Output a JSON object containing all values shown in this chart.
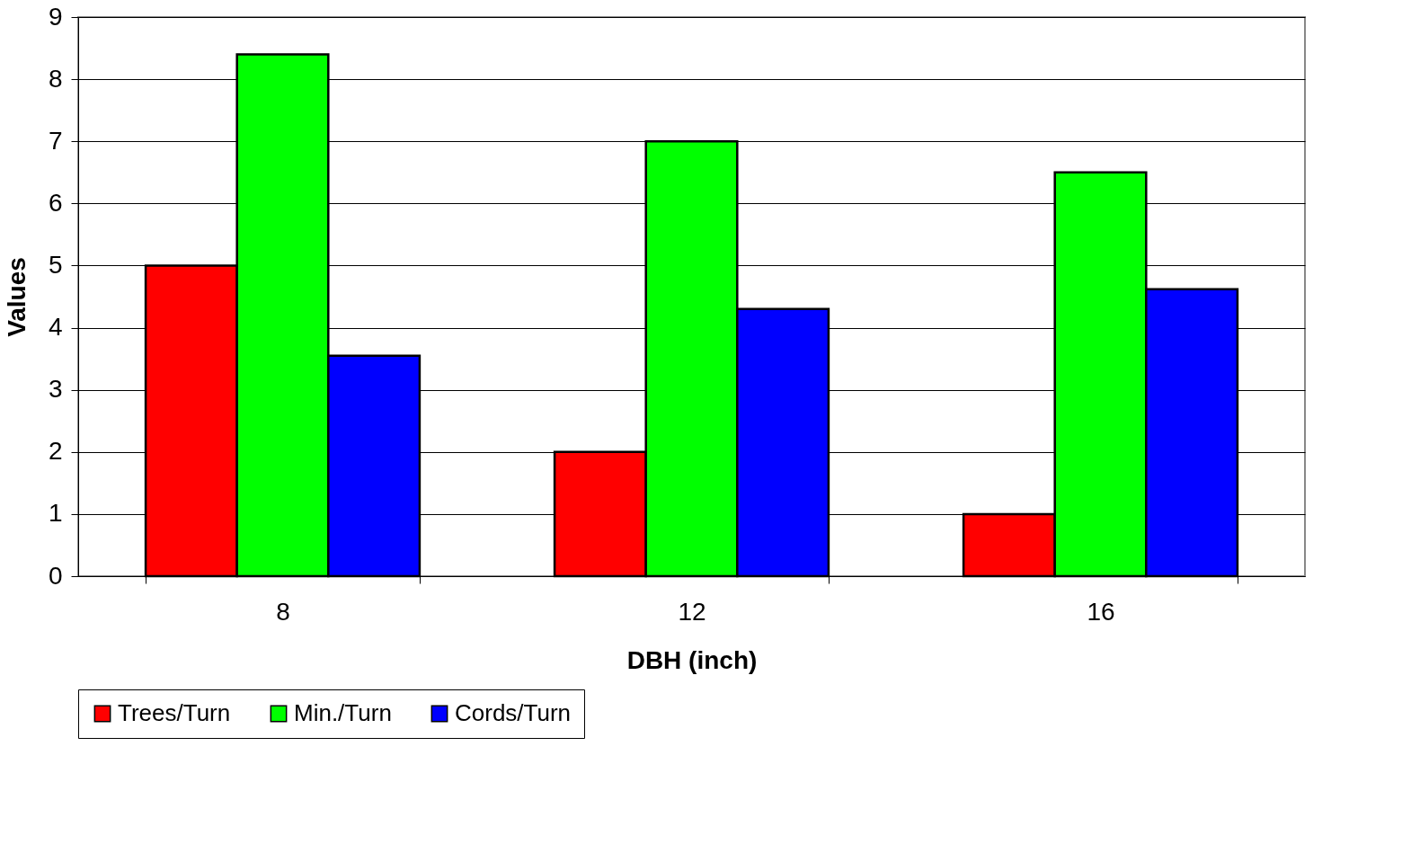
{
  "chart_data": {
    "type": "bar",
    "xlabel": "DBH (inch)",
    "ylabel": "Values",
    "categories": [
      "8",
      "12",
      "16"
    ],
    "series": [
      {
        "name": "Trees/Turn",
        "color": "#ff0000",
        "values": [
          5,
          2,
          1
        ]
      },
      {
        "name": "Min./Turn",
        "color": "#00ff00",
        "values": [
          8.4,
          7,
          6.5
        ]
      },
      {
        "name": "Cords/Turn",
        "color": "#0000ff",
        "values": [
          3.55,
          4.3,
          4.62
        ]
      }
    ],
    "ylim": [
      0,
      9
    ],
    "yticks": [
      0,
      1,
      2,
      3,
      4,
      5,
      6,
      7,
      8,
      9
    ],
    "grid": "y",
    "legend": "bottom"
  }
}
